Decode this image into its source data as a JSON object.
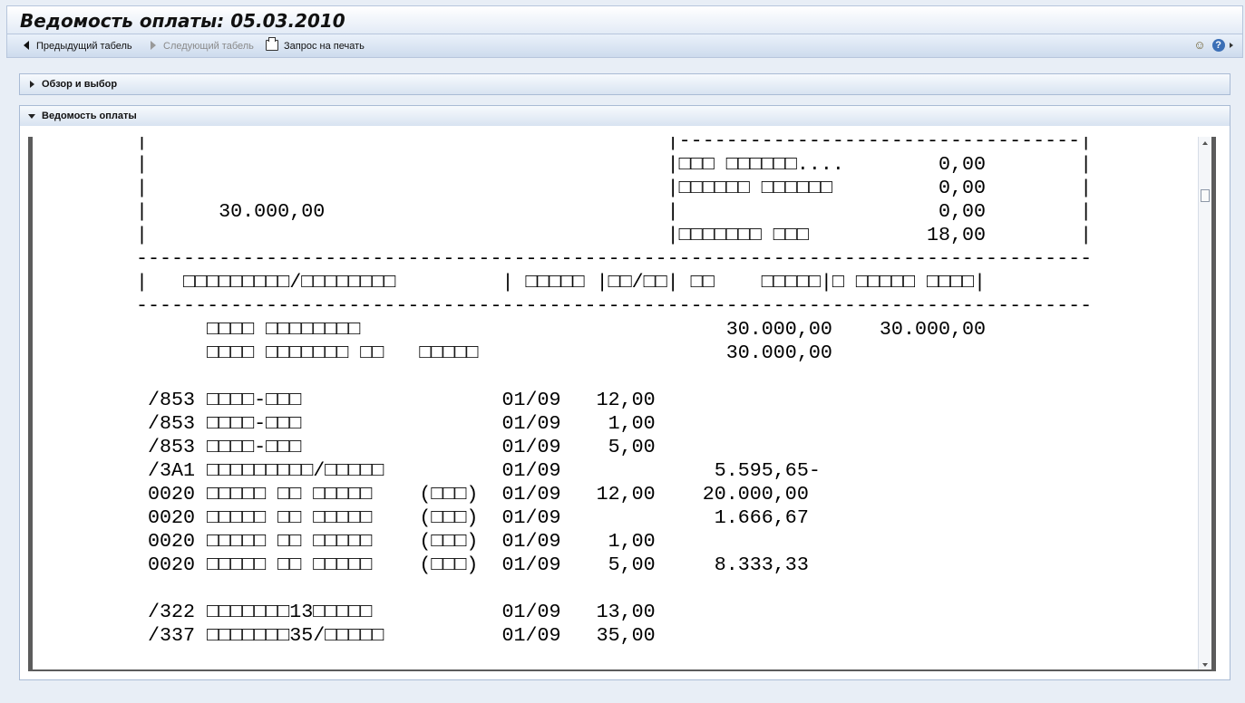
{
  "window": {
    "title": "Ведомость оплаты: 05.03.2010"
  },
  "toolbar": {
    "prev_label": "Предыдущий табель",
    "next_label": "Следующий табель",
    "print_label": "Запрос на печать"
  },
  "panels": {
    "overview_label": "Обзор и выбор",
    "payslip_label": "Ведомость оплаты"
  },
  "report": {
    "lines": [
      "|                                            |----------------------------------|",
      "|                                            |□□□ □□□□□□....        0,00        |",
      "|                                            |□□□□□□ □□□□□□         0,00        |",
      "|      30.000,00                             |                      0,00        |",
      "|                                            |□□□□□□□ □□□          18,00        |",
      "---------------------------------------------------------------------------------",
      "|   □□□□□□□□□/□□□□□□□□         | □□□□□ |□□/□□| □□    □□□□□|□ □□□□□ □□□□|",
      "---------------------------------------------------------------------------------",
      "      □□□□ □□□□□□□□                               30.000,00    30.000,00",
      "      □□□□ □□□□□□□ □□   □□□□□                     30.000,00",
      "",
      " /853 □□□□-□□□                 01/09   12,00",
      " /853 □□□□-□□□                 01/09    1,00",
      " /853 □□□□-□□□                 01/09    5,00",
      " /3A1 □□□□□□□□□/□□□□□          01/09             5.595,65-",
      " 0020 □□□□□ □□ □□□□□    (□□□)  01/09   12,00    20.000,00",
      " 0020 □□□□□ □□ □□□□□    (□□□)  01/09             1.666,67",
      " 0020 □□□□□ □□ □□□□□    (□□□)  01/09    1,00",
      " 0020 □□□□□ □□ □□□□□    (□□□)  01/09    5,00     8.333,33",
      "",
      " /322 □□□□□□□13□□□□□           01/09   13,00",
      " /337 □□□□□□□35/□□□□□          01/09   35,00"
    ]
  },
  "icons": {
    "prev": "triangle-left-icon",
    "next": "triangle-right-icon",
    "print": "printer-icon",
    "personalize": "personalize-icon",
    "help": "help-icon"
  }
}
